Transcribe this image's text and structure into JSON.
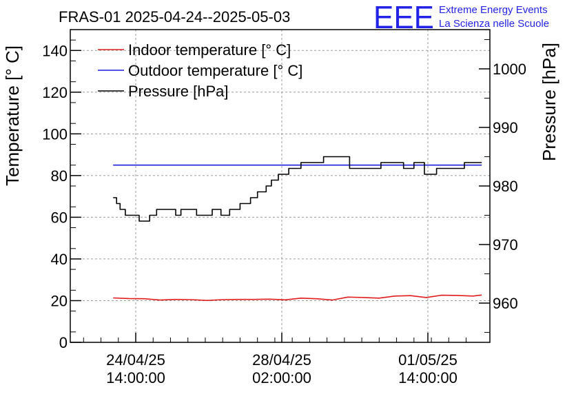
{
  "title": "FRAS-01 2025-04-24--2025-05-03",
  "logo": {
    "mark": "EEE",
    "line1": "Extreme Energy Events",
    "line2": "La Scienza nelle Scuole",
    "color": "#2323e8"
  },
  "chart_data": {
    "type": "line",
    "title": "FRAS-01 2025-04-24--2025-05-03",
    "xlabel": "",
    "ylabel": "Temperature [° C]",
    "y2label": "Pressure [hPa]",
    "ylim": [
      0,
      150
    ],
    "y2lim": [
      953.3,
      1006.7
    ],
    "x_ticks": [
      {
        "x": "2025-04-24 14:00",
        "label": [
          "24/04/25",
          "14:00:00"
        ]
      },
      {
        "x": "2025-04-28 02:00",
        "label": [
          "28/04/25",
          "02:00:00"
        ]
      },
      {
        "x": "2025-05-01 14:00",
        "label": [
          "01/05/25",
          "14:00:00"
        ]
      }
    ],
    "y_ticks": [
      0,
      20,
      40,
      60,
      80,
      100,
      120,
      140
    ],
    "y2_ticks": [
      960,
      970,
      980,
      990,
      1000
    ],
    "grid": true,
    "legend_position": "top-left",
    "series": [
      {
        "name": "Indoor temperature [° C]",
        "color": "#e11b1b",
        "axis": "left",
        "points": [
          [
            "2025-04-24 01:00",
            21.3
          ],
          [
            "2025-04-24 10:00",
            21.0
          ],
          [
            "2025-04-24 19:00",
            20.9
          ],
          [
            "2025-04-25 04:00",
            20.3
          ],
          [
            "2025-04-25 13:00",
            20.6
          ],
          [
            "2025-04-25 22:00",
            20.5
          ],
          [
            "2025-04-26 07:00",
            20.1
          ],
          [
            "2025-04-26 16:00",
            20.5
          ],
          [
            "2025-04-27 01:00",
            20.6
          ],
          [
            "2025-04-27 10:00",
            20.6
          ],
          [
            "2025-04-27 19:00",
            20.7
          ],
          [
            "2025-04-28 04:00",
            20.4
          ],
          [
            "2025-04-28 13:00",
            21.2
          ],
          [
            "2025-04-28 22:00",
            20.9
          ],
          [
            "2025-04-29 07:00",
            20.3
          ],
          [
            "2025-04-29 16:00",
            21.7
          ],
          [
            "2025-04-30 01:00",
            21.5
          ],
          [
            "2025-04-30 10:00",
            21.2
          ],
          [
            "2025-04-30 19:00",
            22.2
          ],
          [
            "2025-05-01 04:00",
            22.4
          ],
          [
            "2025-05-01 13:00",
            21.5
          ],
          [
            "2025-05-01 22:00",
            22.6
          ],
          [
            "2025-05-02 07:00",
            22.5
          ],
          [
            "2025-05-02 16:00",
            22.2
          ],
          [
            "2025-05-02 21:00",
            22.7
          ]
        ]
      },
      {
        "name": "Outdoor temperature [° C]",
        "color": "#1c1cdb",
        "axis": "left",
        "points": [
          [
            "2025-04-24 01:00",
            85.0
          ],
          [
            "2025-05-02 21:00",
            85.0
          ]
        ]
      },
      {
        "name": "Pressure [hPa]",
        "color": "#000000",
        "axis": "right",
        "step": true,
        "points": [
          [
            "2025-04-24 01:00",
            978.0
          ],
          [
            "2025-04-24 03:00",
            977.0
          ],
          [
            "2025-04-24 05:00",
            976.0
          ],
          [
            "2025-04-24 08:00",
            975.0
          ],
          [
            "2025-04-24 16:00",
            974.0
          ],
          [
            "2025-04-24 22:00",
            975.0
          ],
          [
            "2025-04-25 02:00",
            976.0
          ],
          [
            "2025-04-25 13:00",
            975.0
          ],
          [
            "2025-04-25 16:00",
            976.0
          ],
          [
            "2025-04-26 01:00",
            975.0
          ],
          [
            "2025-04-26 10:00",
            976.0
          ],
          [
            "2025-04-26 15:00",
            975.0
          ],
          [
            "2025-04-26 20:00",
            976.0
          ],
          [
            "2025-04-27 02:00",
            977.0
          ],
          [
            "2025-04-27 08:00",
            978.0
          ],
          [
            "2025-04-27 12:00",
            979.0
          ],
          [
            "2025-04-27 17:00",
            980.0
          ],
          [
            "2025-04-27 20:00",
            981.0
          ],
          [
            "2025-04-28 00:00",
            982.0
          ],
          [
            "2025-04-28 06:00",
            983.0
          ],
          [
            "2025-04-28 13:00",
            984.0
          ],
          [
            "2025-04-29 02:00",
            985.0
          ],
          [
            "2025-04-29 17:00",
            983.0
          ],
          [
            "2025-04-30 11:00",
            984.0
          ],
          [
            "2025-05-01 00:00",
            983.0
          ],
          [
            "2025-05-01 06:00",
            984.0
          ],
          [
            "2025-05-01 12:00",
            982.0
          ],
          [
            "2025-05-01 19:00",
            983.0
          ],
          [
            "2025-05-02 11:00",
            984.0
          ],
          [
            "2025-05-02 21:00",
            984.0
          ]
        ]
      }
    ]
  }
}
